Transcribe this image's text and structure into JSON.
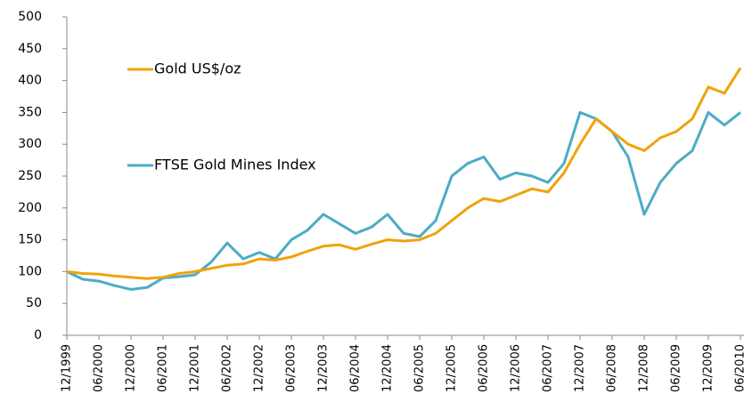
{
  "chart_data": {
    "type": "line",
    "categories": [
      "12/1999",
      null,
      "06/2000",
      null,
      "12/2000",
      null,
      "06/2001",
      null,
      "12/2001",
      null,
      "06/2002",
      null,
      "12/2002",
      null,
      "06/2003",
      null,
      "12/2003",
      null,
      "06/2004",
      null,
      "12/2004",
      null,
      "06/2005",
      null,
      "12/2005",
      null,
      "06/2006",
      null,
      "12/2006",
      null,
      "06/2007",
      null,
      "12/2007",
      null,
      "06/2008",
      null,
      "12/2008",
      null,
      "06/2009",
      null,
      "12/2009",
      null,
      "06/2010"
    ],
    "series": [
      {
        "name": "Gold US$/oz",
        "color": "#f0a30a",
        "values": [
          100,
          97,
          96,
          93,
          91,
          89,
          91,
          97,
          100,
          105,
          110,
          112,
          120,
          118,
          123,
          132,
          140,
          142,
          135,
          143,
          150,
          148,
          150,
          160,
          180,
          200,
          215,
          210,
          220,
          230,
          225,
          255,
          300,
          340,
          320,
          300,
          290,
          310,
          320,
          340,
          390,
          380,
          420
        ]
      },
      {
        "name": "FTSE Gold Mines Index",
        "color": "#4bacc6",
        "values": [
          100,
          88,
          85,
          78,
          72,
          75,
          90,
          92,
          95,
          115,
          145,
          120,
          130,
          120,
          150,
          165,
          190,
          175,
          160,
          170,
          190,
          160,
          155,
          180,
          250,
          270,
          280,
          245,
          255,
          250,
          240,
          270,
          350,
          340,
          320,
          280,
          190,
          240,
          270,
          290,
          350,
          330,
          350
        ]
      }
    ],
    "ylim": [
      0,
      500
    ],
    "yticks": [
      0,
      50,
      100,
      150,
      200,
      250,
      300,
      350,
      400,
      450,
      500
    ],
    "grid": false
  }
}
